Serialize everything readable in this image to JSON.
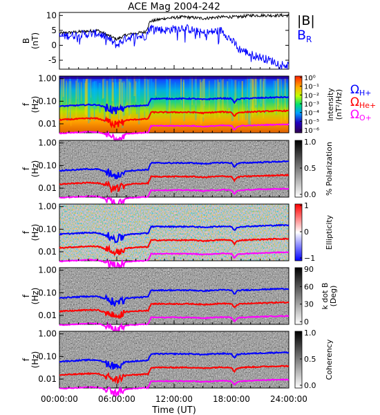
{
  "title": "ACE Mag 2004-242",
  "xlabel": "Time (UT)",
  "x_ticks": [
    "00:00:00",
    "06:00:00",
    "12:00:00",
    "18:00:00",
    "24:00:00"
  ],
  "freq_ticks": [
    "1.00",
    "0.10",
    "0.01"
  ],
  "freq_label": [
    "f",
    "(Hz)"
  ],
  "gyro_legend": [
    {
      "symbol": "Ω",
      "sub": "H+",
      "color": "#0000ff"
    },
    {
      "symbol": "Ω",
      "sub": "He+",
      "color": "#ff0000"
    },
    {
      "symbol": "Ω",
      "sub": "O+",
      "color": "#ff00ff"
    }
  ],
  "colors": {
    "bmag": "#000000",
    "br": "#0000ff",
    "h": "#0000ff",
    "he": "#ff0000",
    "o": "#ff00ff"
  },
  "chart_data": [
    {
      "type": "line",
      "ylabel": [
        "B",
        "(nT)"
      ],
      "ylim": [
        -8,
        11
      ],
      "y_ticks": [
        "10",
        "5",
        "0",
        "-5"
      ],
      "x": [
        0,
        2,
        4,
        5,
        6,
        7,
        8,
        9,
        9.5,
        11,
        13,
        15,
        17,
        18.5,
        18.7,
        20,
        22,
        24
      ],
      "series": [
        {
          "name": "|B|",
          "color": "#000000",
          "values": [
            4,
            4.5,
            5,
            3.5,
            2,
            3.5,
            4,
            4.5,
            8,
            9,
            9.5,
            9,
            9.5,
            9.5,
            9.5,
            10,
            10,
            10
          ]
        },
        {
          "name": "B",
          "sub": "R",
          "color": "#0000ff",
          "values": [
            3,
            3.5,
            4,
            2.5,
            0,
            2.5,
            3,
            3,
            6,
            5,
            6,
            4,
            5,
            0,
            -1,
            -3,
            -5,
            -7
          ]
        }
      ]
    },
    {
      "type": "heatmap",
      "colorbar_title": [
        "Intensity",
        "(nT²/Hz)"
      ],
      "colorbar_ticks": [
        "10⁰",
        "10⁻¹",
        "10⁻²",
        "10⁻³",
        "10⁻⁴",
        "10⁻⁵",
        "10⁻⁶"
      ]
    },
    {
      "type": "heatmap",
      "colorbar_title": [
        "% Polarization"
      ],
      "colorbar_ticks": [
        "1.0",
        "0.5",
        "0.0"
      ]
    },
    {
      "type": "heatmap",
      "colorbar_title": [
        "Ellipticity"
      ],
      "colorbar_ticks": [
        "1",
        "0",
        "−1"
      ]
    },
    {
      "type": "heatmap",
      "colorbar_title": [
        "k dot B",
        "(Deg)"
      ],
      "colorbar_ticks": [
        "90",
        "60",
        "30",
        "0"
      ]
    },
    {
      "type": "heatmap",
      "colorbar_title": [
        "Coherency"
      ],
      "colorbar_ticks": [
        "1.0",
        "0.5",
        "0.0"
      ]
    }
  ],
  "gyrofrequency": {
    "x": [
      0,
      1,
      2,
      3,
      4,
      5,
      5.5,
      6,
      6.5,
      7,
      8,
      9.3,
      9.6,
      12,
      14,
      15,
      16,
      17,
      18,
      18.3,
      18.6,
      19,
      21,
      23,
      24
    ],
    "h_hz": [
      0.06,
      0.063,
      0.066,
      0.07,
      0.069,
      0.05,
      0.042,
      0.035,
      0.045,
      0.058,
      0.062,
      0.066,
      0.13,
      0.13,
      0.13,
      0.12,
      0.128,
      0.135,
      0.13,
      0.085,
      0.12,
      0.13,
      0.14,
      0.15,
      0.15
    ]
  }
}
